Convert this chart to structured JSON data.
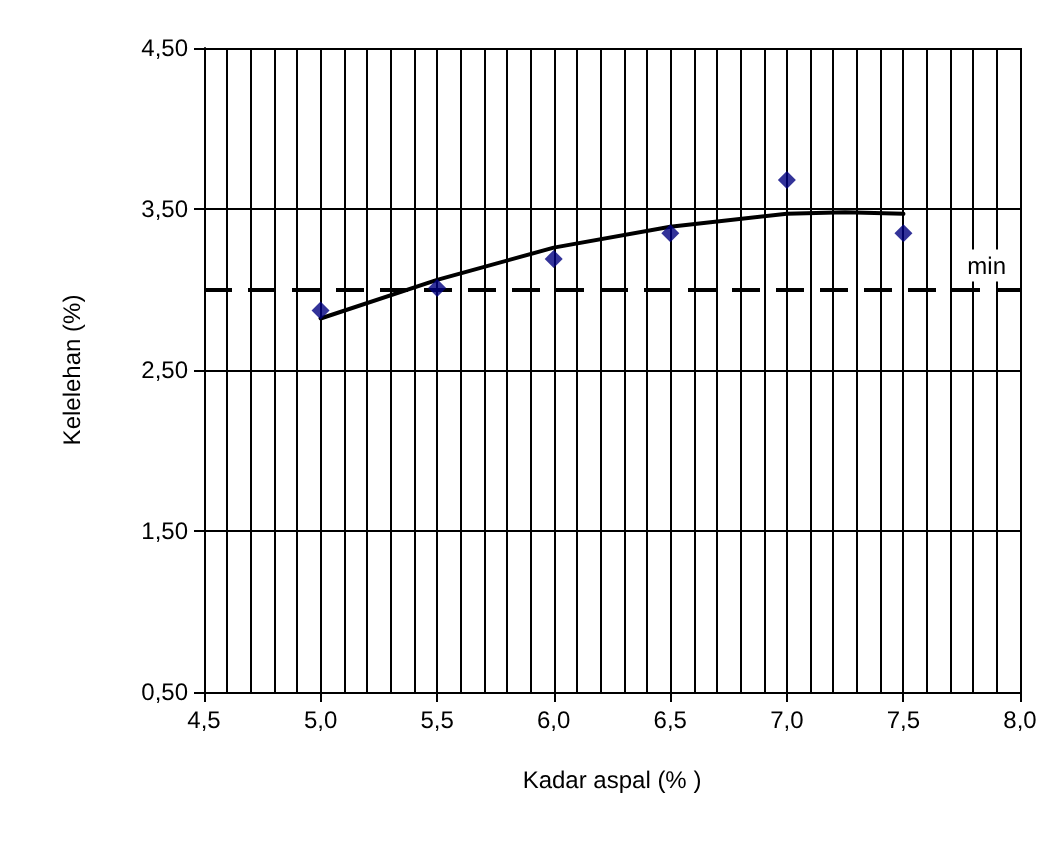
{
  "chart_data": {
    "type": "scatter",
    "xlabel": "Kadar aspal (% )",
    "ylabel": "Kelelehan (%)",
    "xlim": [
      4.5,
      8.0
    ],
    "xticks": [
      {
        "value": 4.5,
        "label": "4,5"
      },
      {
        "value": 5.0,
        "label": "5,0"
      },
      {
        "value": 5.5,
        "label": "5,5"
      },
      {
        "value": 6.0,
        "label": "6,0"
      },
      {
        "value": 6.5,
        "label": "6,5"
      },
      {
        "value": 7.0,
        "label": "7,0"
      },
      {
        "value": 7.5,
        "label": "7,5"
      },
      {
        "value": 8.0,
        "label": "8,0"
      }
    ],
    "ylim": [
      0.5,
      4.5
    ],
    "yticks": [
      {
        "value": 0.5,
        "label": "0,50"
      },
      {
        "value": 1.5,
        "label": "1,50"
      },
      {
        "value": 2.5,
        "label": "2,50"
      },
      {
        "value": 3.5,
        "label": "3,50"
      },
      {
        "value": 4.5,
        "label": "4,50"
      }
    ],
    "grid": true,
    "marker": "diamond",
    "series": [
      {
        "color": "#000080",
        "x": [
          5.0,
          5.5,
          6.0,
          6.5,
          7.0,
          7.5
        ],
        "values": [
          2.87,
          3.01,
          3.19,
          3.35,
          3.68,
          3.35
        ]
      },
      {
        "type": "line",
        "color": "#000000",
        "marker": "none",
        "line_style": "solid",
        "x": [
          5.0,
          5.5,
          6.0,
          6.5,
          7.0,
          7.25,
          7.5
        ],
        "values": [
          2.82,
          3.06,
          3.26,
          3.39,
          3.47,
          3.48,
          3.47
        ]
      }
    ],
    "ref_lines": [
      {
        "axis": "y",
        "value": 3.0,
        "label": "min",
        "color": "#000000",
        "line_style": "dashed"
      }
    ]
  }
}
